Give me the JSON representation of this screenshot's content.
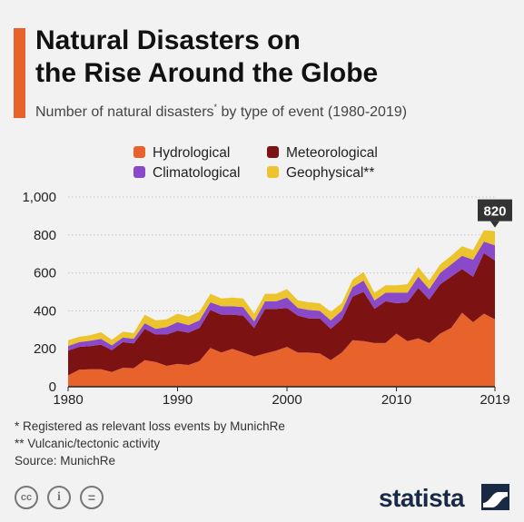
{
  "header": {
    "title_line1": "Natural Disasters on",
    "title_line2": "the Rise Around the Globe",
    "subtitle_main": "Number of natural disasters",
    "subtitle_mark": "*",
    "subtitle_rest": " by type of event (1980-2019)"
  },
  "colors": {
    "accent": "#e8622c",
    "hydrological": "#e8622c",
    "meteorological": "#7d1212",
    "climatological": "#8a49c9",
    "geophysical": "#ecc52e",
    "brand": "#1a2a44"
  },
  "chart_data": {
    "type": "area",
    "stacked": true,
    "x": [
      1980,
      1981,
      1982,
      1983,
      1984,
      1985,
      1986,
      1987,
      1988,
      1989,
      1990,
      1991,
      1992,
      1993,
      1994,
      1995,
      1996,
      1997,
      1998,
      1999,
      2000,
      2001,
      2002,
      2003,
      2004,
      2005,
      2006,
      2007,
      2008,
      2009,
      2010,
      2011,
      2012,
      2013,
      2014,
      2015,
      2016,
      2017,
      2018,
      2019
    ],
    "series": [
      {
        "name": "Hydrological",
        "color": "#e8622c",
        "values": [
          60,
          90,
          92,
          92,
          78,
          100,
          98,
          140,
          130,
          110,
          120,
          115,
          135,
          205,
          180,
          200,
          180,
          160,
          175,
          190,
          210,
          180,
          180,
          175,
          140,
          180,
          245,
          240,
          230,
          230,
          280,
          240,
          255,
          230,
          280,
          310,
          390,
          340,
          385,
          355
        ]
      },
      {
        "name": "Meteorological",
        "color": "#7d1212",
        "values": [
          130,
          120,
          122,
          130,
          115,
          135,
          130,
          165,
          145,
          165,
          175,
          170,
          175,
          200,
          200,
          180,
          195,
          150,
          235,
          220,
          205,
          195,
          180,
          185,
          165,
          175,
          230,
          260,
          180,
          220,
          160,
          205,
          265,
          230,
          260,
          270,
          230,
          240,
          320,
          310
        ]
      },
      {
        "name": "Climatological",
        "color": "#8a49c9",
        "values": [
          25,
          25,
          28,
          30,
          25,
          25,
          25,
          30,
          30,
          40,
          45,
          40,
          40,
          40,
          45,
          45,
          45,
          35,
          40,
          40,
          55,
          40,
          45,
          40,
          45,
          45,
          50,
          60,
          45,
          45,
          55,
          50,
          60,
          55,
          60,
          65,
          70,
          90,
          60,
          80
        ]
      },
      {
        "name": "Geophysical",
        "color": "#ecc52e",
        "values": [
          30,
          28,
          30,
          35,
          30,
          30,
          30,
          45,
          45,
          40,
          45,
          45,
          45,
          45,
          40,
          45,
          45,
          40,
          40,
          40,
          45,
          40,
          40,
          40,
          45,
          40,
          40,
          45,
          40,
          40,
          40,
          45,
          50,
          45,
          45,
          45,
          50,
          50,
          60,
          75
        ]
      }
    ],
    "total_label": "820",
    "total_label_year": 2019,
    "ylim": [
      0,
      1000
    ],
    "yticks": [
      0,
      200,
      400,
      600,
      800,
      1000
    ],
    "ytick_labels": [
      "0",
      "200",
      "400",
      "600",
      "800",
      "1,000"
    ],
    "xticks": [
      1980,
      1990,
      2000,
      2010,
      2019
    ],
    "xtick_labels": [
      "1980",
      "1990",
      "2000",
      "2010",
      "2019"
    ],
    "grid": true,
    "legend_position": "top-center"
  },
  "footnotes": {
    "note1": "*   Registered as relevant loss events by MunichRe",
    "note2": "** Vulcanic/tectonic activity",
    "source": "Source: MunichRe"
  },
  "license": {
    "cc": "cc",
    "by": "i",
    "nd": "="
  },
  "brand": {
    "name": "statista"
  }
}
